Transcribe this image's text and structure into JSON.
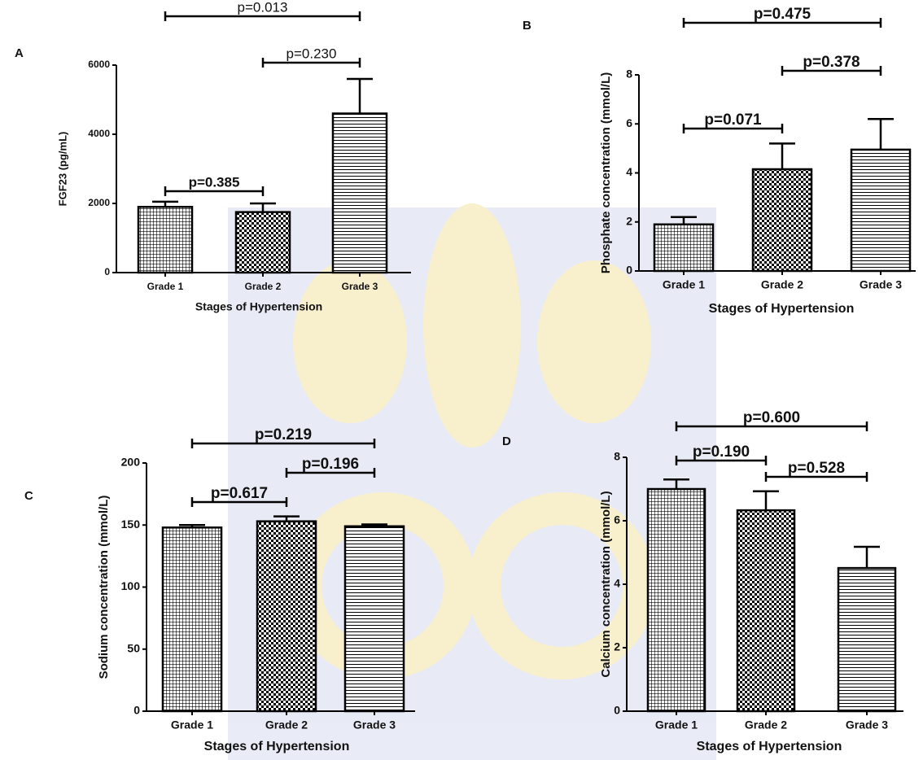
{
  "chart_data": [
    {
      "type": "bar",
      "panel": "A",
      "ylabel": "FGF23 (pg/mL)",
      "xlabel": "Stages of Hypertension",
      "categories": [
        "Grade 1",
        "Grade 2",
        "Grade 3"
      ],
      "values": [
        1900,
        1750,
        4600
      ],
      "errors": [
        150,
        250,
        1000
      ],
      "ylim": [
        0,
        6000
      ],
      "yticks": [
        0,
        2000,
        4000,
        6000
      ],
      "color": "#000000",
      "annotations": [
        "p=0.013",
        "p=0.230",
        "p=0.385"
      ]
    },
    {
      "type": "bar",
      "panel": "B",
      "ylabel": "Phosphate concentration (mmol/L)",
      "xlabel": "Stages of Hypertension",
      "categories": [
        "Grade 1",
        "Grade 2",
        "Grade 3"
      ],
      "values": [
        1.9,
        4.15,
        4.95
      ],
      "errors": [
        0.3,
        1.05,
        1.25
      ],
      "ylim": [
        0,
        8
      ],
      "yticks": [
        0,
        2,
        4,
        6,
        8
      ],
      "color": "#000000",
      "annotations": [
        "p=0.475",
        "p=0.378",
        "p=0.071"
      ]
    },
    {
      "type": "bar",
      "panel": "C",
      "ylabel": "Sodium concentration (mmol/L)",
      "xlabel": "Stages of Hypertension",
      "categories": [
        "Grade 1",
        "Grade 2",
        "Grade 3"
      ],
      "values": [
        148,
        153,
        149
      ],
      "errors": [
        2,
        4,
        1.5
      ],
      "ylim": [
        0,
        200
      ],
      "yticks": [
        0,
        50,
        100,
        150,
        200
      ],
      "color": "#000000",
      "annotations": [
        "p=0.219",
        "p=0.196",
        "p=0.617"
      ]
    },
    {
      "type": "bar",
      "panel": "D",
      "ylabel": "Calcium concentration (mmol/L)",
      "xlabel": "Stages of Hypertension",
      "categories": [
        "Grade 1",
        "Grade 2",
        "Grade 3"
      ],
      "values": [
        7.0,
        6.33,
        4.51
      ],
      "errors": [
        0.3,
        0.6,
        0.67
      ],
      "ylim": [
        0,
        8
      ],
      "yticks": [
        0,
        2,
        4,
        6,
        8
      ],
      "color": "#000000",
      "annotations": [
        "p=0.600",
        "p=0.190",
        "p=0.528"
      ]
    }
  ]
}
